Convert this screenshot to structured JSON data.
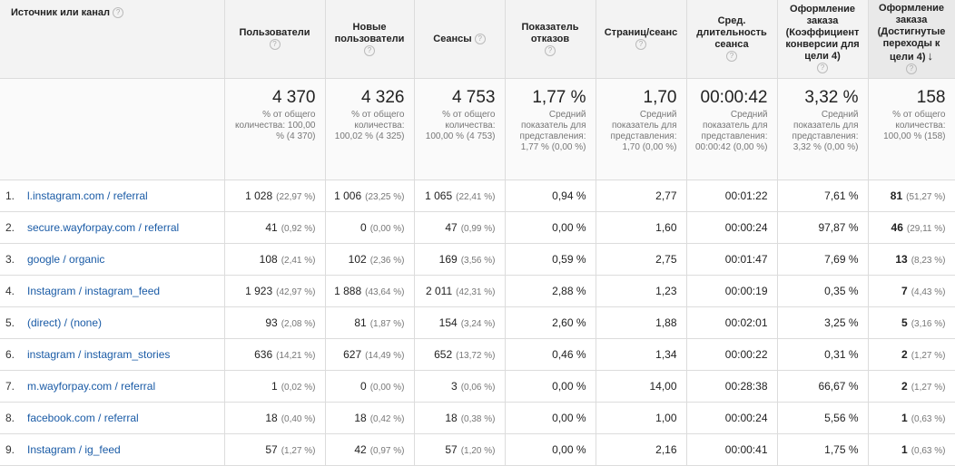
{
  "columns": [
    {
      "label": "Источник или канал"
    },
    {
      "label": "Пользователи"
    },
    {
      "label": "Новые пользователи"
    },
    {
      "label": "Сеансы"
    },
    {
      "label": "Показатель отказов"
    },
    {
      "label": "Страниц/сеанс"
    },
    {
      "label": "Сред. длительность сеанса"
    },
    {
      "label": "Оформление заказа (Коэффициент конверсии для цели 4)"
    },
    {
      "label": "Оформление заказа (Достигнутые переходы к цели 4)"
    }
  ],
  "totals": [
    {
      "value": "4 370",
      "sub": "% от общего количества: 100,00 % (4 370)"
    },
    {
      "value": "4 326",
      "sub": "% от общего количества: 100,02 % (4 325)"
    },
    {
      "value": "4 753",
      "sub": "% от общего количества: 100,00 % (4 753)"
    },
    {
      "value": "1,77 %",
      "sub": "Средний показатель для представления: 1,77 % (0,00 %)"
    },
    {
      "value": "1,70",
      "sub": "Средний показатель для представления: 1,70 (0,00 %)"
    },
    {
      "value": "00:00:42",
      "sub": "Средний показатель для представления: 00:00:42 (0,00 %)"
    },
    {
      "value": "3,32 %",
      "sub": "Средний показатель для представления: 3,32 % (0,00 %)"
    },
    {
      "value": "158",
      "sub": "% от общего количества: 100,00 % (158)"
    }
  ],
  "rows": [
    {
      "idx": "1.",
      "source": "l.instagram.com / referral",
      "users": "1 028",
      "users_pct": "(22,97 %)",
      "new_users": "1 006",
      "new_users_pct": "(23,25 %)",
      "sessions": "1 065",
      "sessions_pct": "(22,41 %)",
      "bounce": "0,94 %",
      "pages": "2,77",
      "duration": "00:01:22",
      "conv": "7,61 %",
      "goals": "81",
      "goals_pct": "(51,27 %)"
    },
    {
      "idx": "2.",
      "source": "secure.wayforpay.com / referral",
      "users": "41",
      "users_pct": "(0,92 %)",
      "new_users": "0",
      "new_users_pct": "(0,00 %)",
      "sessions": "47",
      "sessions_pct": "(0,99 %)",
      "bounce": "0,00 %",
      "pages": "1,60",
      "duration": "00:00:24",
      "conv": "97,87 %",
      "goals": "46",
      "goals_pct": "(29,11 %)"
    },
    {
      "idx": "3.",
      "source": "google / organic",
      "users": "108",
      "users_pct": "(2,41 %)",
      "new_users": "102",
      "new_users_pct": "(2,36 %)",
      "sessions": "169",
      "sessions_pct": "(3,56 %)",
      "bounce": "0,59 %",
      "pages": "2,75",
      "duration": "00:01:47",
      "conv": "7,69 %",
      "goals": "13",
      "goals_pct": "(8,23 %)"
    },
    {
      "idx": "4.",
      "source": "Instagram / instagram_feed",
      "users": "1 923",
      "users_pct": "(42,97 %)",
      "new_users": "1 888",
      "new_users_pct": "(43,64 %)",
      "sessions": "2 011",
      "sessions_pct": "(42,31 %)",
      "bounce": "2,88 %",
      "pages": "1,23",
      "duration": "00:00:19",
      "conv": "0,35 %",
      "goals": "7",
      "goals_pct": "(4,43 %)"
    },
    {
      "idx": "5.",
      "source": "(direct) / (none)",
      "users": "93",
      "users_pct": "(2,08 %)",
      "new_users": "81",
      "new_users_pct": "(1,87 %)",
      "sessions": "154",
      "sessions_pct": "(3,24 %)",
      "bounce": "2,60 %",
      "pages": "1,88",
      "duration": "00:02:01",
      "conv": "3,25 %",
      "goals": "5",
      "goals_pct": "(3,16 %)"
    },
    {
      "idx": "6.",
      "source": "instagram / instagram_stories",
      "users": "636",
      "users_pct": "(14,21 %)",
      "new_users": "627",
      "new_users_pct": "(14,49 %)",
      "sessions": "652",
      "sessions_pct": "(13,72 %)",
      "bounce": "0,46 %",
      "pages": "1,34",
      "duration": "00:00:22",
      "conv": "0,31 %",
      "goals": "2",
      "goals_pct": "(1,27 %)"
    },
    {
      "idx": "7.",
      "source": "m.wayforpay.com / referral",
      "users": "1",
      "users_pct": "(0,02 %)",
      "new_users": "0",
      "new_users_pct": "(0,00 %)",
      "sessions": "3",
      "sessions_pct": "(0,06 %)",
      "bounce": "0,00 %",
      "pages": "14,00",
      "duration": "00:28:38",
      "conv": "66,67 %",
      "goals": "2",
      "goals_pct": "(1,27 %)"
    },
    {
      "idx": "8.",
      "source": "facebook.com / referral",
      "users": "18",
      "users_pct": "(0,40 %)",
      "new_users": "18",
      "new_users_pct": "(0,42 %)",
      "sessions": "18",
      "sessions_pct": "(0,38 %)",
      "bounce": "0,00 %",
      "pages": "1,00",
      "duration": "00:00:24",
      "conv": "5,56 %",
      "goals": "1",
      "goals_pct": "(0,63 %)"
    },
    {
      "idx": "9.",
      "source": "Instagram / ig_feed",
      "users": "57",
      "users_pct": "(1,27 %)",
      "new_users": "42",
      "new_users_pct": "(0,97 %)",
      "sessions": "57",
      "sessions_pct": "(1,20 %)",
      "bounce": "0,00 %",
      "pages": "2,16",
      "duration": "00:00:41",
      "conv": "1,75 %",
      "goals": "1",
      "goals_pct": "(0,63 %)"
    }
  ],
  "icons": {
    "help": "help-icon",
    "sort": "sort-desc-icon"
  },
  "colors": {
    "link": "#1a5ba6",
    "header_bg": "#f3f3f3",
    "muted": "#777777"
  }
}
